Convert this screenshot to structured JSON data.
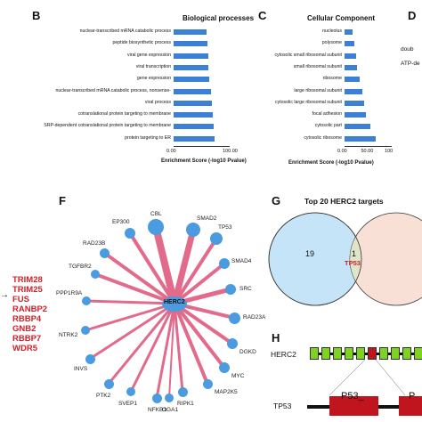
{
  "panels": {
    "B": {
      "letter": "B",
      "title": "Biological processes"
    },
    "C": {
      "letter": "C",
      "title": "Cellular Component"
    },
    "D": {
      "letter": "D",
      "side_texts": [
        "doub",
        "ATP-de"
      ]
    },
    "E": {
      "red_genes": [
        "TRIM28",
        "TRIM25",
        "FUS",
        "RANBP2",
        "RBBP4",
        "GNB2",
        "RBBP7",
        "WDR5"
      ],
      "arrow": "→"
    },
    "F": {
      "letter": "F",
      "center": "HERC2",
      "genes": [
        "CBL",
        "SMAD2",
        "EP300",
        "TP53",
        "RAD23B",
        "SMAD4",
        "TGFBR2",
        "SRC",
        "PPP1R9A",
        "RAD23A",
        "NTRK2",
        "DGKD",
        "INVS",
        "MYC",
        "PTK2",
        "MAP2K5",
        "SVEP1",
        "RIPK1",
        "NFKB1",
        "OGA1"
      ]
    },
    "G": {
      "letter": "G",
      "title": "Top 20 HERC2 targets",
      "left_count": "19",
      "overlap_count": "1",
      "overlap_gene": "TP53"
    },
    "H": {
      "letter": "H",
      "herc2_label": "HERC2",
      "tp53_label": "TP53",
      "domain1": "P53_",
      "domain2": "P"
    }
  },
  "chart_data": [
    {
      "type": "bar",
      "orientation": "horizontal",
      "title": "Biological processes",
      "xlabel": "Enrichment Score (-log10 Pvalue)",
      "xticks": [
        "0.00",
        "100.00"
      ],
      "xlim": [
        0,
        100
      ],
      "categories": [
        "nuclear-transcribed mRNA catabolic process",
        "peptide biosynthetic process",
        "viral gene expression",
        "viral transcription",
        "gene expression",
        "nuclear-transcribed mRNA catabolic process, nonsense-",
        "viral process",
        "cotranslational protein targeting to membrane",
        "SRP-dependent cotranslational protein targeting to membrane",
        "protein targeting to ER"
      ],
      "values": [
        58,
        60,
        62,
        62,
        64,
        66,
        68,
        70,
        72,
        73
      ]
    },
    {
      "type": "bar",
      "orientation": "horizontal",
      "title": "Cellular Component",
      "xlabel": "Enrichment Score (-log10 Pvalue)",
      "xticks": [
        "0.00",
        "50.00",
        "100"
      ],
      "xlim": [
        0,
        100
      ],
      "categories": [
        "nucleolus",
        "polysome",
        "cytosolic small ribosomal subunit",
        "small ribosomal subunit",
        "ribosome",
        "large ribosomal subunit",
        "cytosolic large ribosomal subunit",
        "focal adhesion",
        "cytosolic part",
        "cytosolic ribosome"
      ],
      "values": [
        17,
        20,
        24,
        26,
        33,
        38,
        41,
        46,
        54,
        66
      ]
    }
  ]
}
